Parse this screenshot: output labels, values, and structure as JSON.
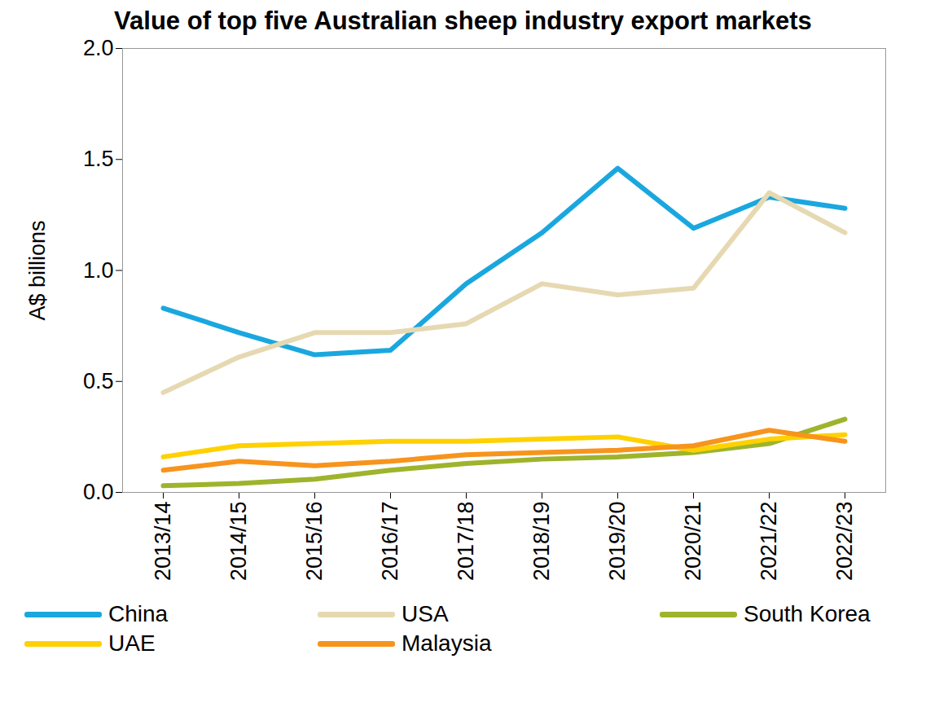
{
  "chart_data": {
    "type": "line",
    "title": "Value of top five Australian sheep industry export markets",
    "y_label": "A$ billions",
    "categories": [
      "2013/14",
      "2014/15",
      "2015/16",
      "2016/17",
      "2017/18",
      "2018/19",
      "2019/20",
      "2020/21",
      "2021/22",
      "2022/23"
    ],
    "series": [
      {
        "name": "China",
        "color": "#1aa7df",
        "values": [
          0.83,
          0.72,
          0.62,
          0.64,
          0.94,
          1.17,
          1.46,
          1.19,
          1.33,
          1.28
        ]
      },
      {
        "name": "USA",
        "color": "#e6d9b2",
        "values": [
          0.45,
          0.61,
          0.72,
          0.72,
          0.76,
          0.94,
          0.89,
          0.92,
          1.35,
          1.17
        ]
      },
      {
        "name": "South Korea",
        "color": "#9db42c",
        "values": [
          0.03,
          0.04,
          0.06,
          0.1,
          0.13,
          0.15,
          0.16,
          0.18,
          0.22,
          0.33
        ]
      },
      {
        "name": "UAE",
        "color": "#ffd100",
        "values": [
          0.16,
          0.21,
          0.22,
          0.23,
          0.23,
          0.24,
          0.25,
          0.19,
          0.24,
          0.26
        ]
      },
      {
        "name": "Malaysia",
        "color": "#f7941d",
        "values": [
          0.1,
          0.14,
          0.12,
          0.14,
          0.17,
          0.18,
          0.19,
          0.21,
          0.28,
          0.23
        ]
      }
    ],
    "ylim": [
      0,
      2
    ],
    "yticks": [
      {
        "value": 0,
        "label": "0.0"
      },
      0.5,
      {
        "value": 1,
        "label": "1.0"
      },
      1.5,
      {
        "value": 2,
        "label": "2.0"
      }
    ],
    "grid": false,
    "legend": "bottom"
  }
}
